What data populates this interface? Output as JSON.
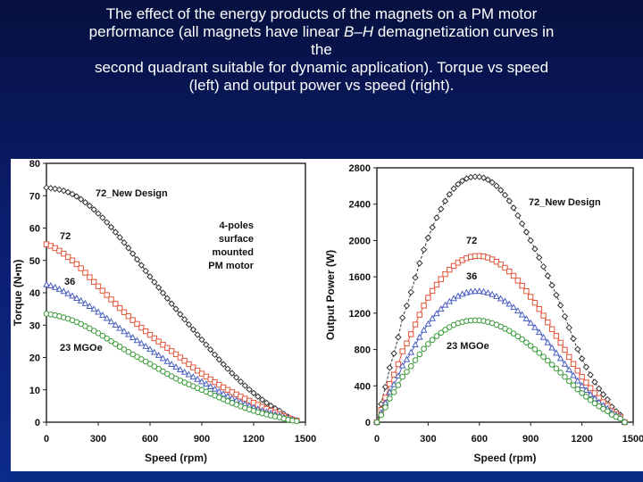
{
  "title": {
    "line1": "The effect of the energy products of the magnets on a PM motor",
    "line2_pre": "performance (all magnets have linear ",
    "line2_em": "B–H",
    "line2_post": " demagnetization curves in",
    "line3": "the",
    "line4": "second quadrant suitable for dynamic application). Torque vs speed",
    "line5": "(left) and output power vs speed (right)."
  },
  "colors": {
    "new_design": "#333333",
    "mgoe72": "#e2553a",
    "mgoe36": "#4a5fc0",
    "mgoe23": "#3a9a3a"
  },
  "chart_data": [
    {
      "type": "line",
      "title": "",
      "xlabel": "Speed (rpm)",
      "ylabel": "Torque (N•m)",
      "xlim": [
        0,
        1500
      ],
      "ylim": [
        0,
        80
      ],
      "xticks": [
        "0",
        "300",
        "600",
        "900",
        "1200",
        "1500"
      ],
      "yticks": [
        "0",
        "10",
        "20",
        "30",
        "40",
        "50",
        "60",
        "70",
        "80"
      ],
      "x": [
        0,
        150,
        300,
        450,
        600,
        750,
        900,
        1050,
        1200,
        1350,
        1450
      ],
      "series": [
        {
          "name": "72_New Design",
          "values": [
            72.5,
            70.5,
            64.5,
            55.5,
            45,
            35,
            25.5,
            16.5,
            9,
            3.5,
            0.5
          ]
        },
        {
          "name": "72",
          "values": [
            55,
            50,
            42,
            34,
            27,
            21,
            15,
            10,
            6,
            2.5,
            0.5
          ]
        },
        {
          "name": "36",
          "values": [
            42.5,
            39,
            34,
            28,
            22.5,
            17,
            12.5,
            8,
            4.5,
            2,
            0.5
          ]
        },
        {
          "name": "23 MGOe",
          "values": [
            33.5,
            31.5,
            27.5,
            22.5,
            18,
            13.5,
            10,
            6.5,
            3.5,
            1.5,
            0.3
          ]
        }
      ],
      "annotations": {
        "label_new": "72_New Design",
        "label_72": "72",
        "label_36": "36",
        "label_23": "23 MGOe",
        "note1": "4-poles",
        "note2": "surface",
        "note3": "mounted",
        "note4": "PM motor"
      }
    },
    {
      "type": "line",
      "title": "",
      "xlabel": "Speed (rpm)",
      "ylabel": "Output Power (W)",
      "xlim": [
        0,
        1500
      ],
      "ylim": [
        0,
        2800
      ],
      "xticks": [
        "0",
        "300",
        "600",
        "900",
        "1200",
        "1500"
      ],
      "yticks": [
        "0",
        "400",
        "800",
        "1200",
        "1600",
        "2000",
        "2400",
        "2800"
      ],
      "x": [
        0,
        30,
        75,
        150,
        300,
        450,
        600,
        750,
        900,
        1050,
        1200,
        1350,
        1425,
        1450
      ],
      "series": [
        {
          "name": "72_New Design",
          "values": [
            0,
            250,
            600,
            1150,
            2030,
            2570,
            2700,
            2500,
            2000,
            1400,
            700,
            250,
            80,
            0
          ]
        },
        {
          "name": "72",
          "values": [
            0,
            170,
            420,
            780,
            1370,
            1720,
            1830,
            1700,
            1380,
            950,
            500,
            180,
            60,
            0
          ]
        },
        {
          "name": "36",
          "values": [
            0,
            130,
            330,
            620,
            1080,
            1360,
            1440,
            1330,
            1090,
            760,
            400,
            150,
            50,
            0
          ]
        },
        {
          "name": "23 MGOe",
          "values": [
            0,
            100,
            260,
            500,
            860,
            1070,
            1120,
            1030,
            840,
            590,
            320,
            120,
            40,
            0
          ]
        }
      ],
      "annotations": {
        "label_new": "72_New Design",
        "label_72": "72",
        "label_36": "36",
        "label_23": "23 MGOe"
      }
    }
  ]
}
